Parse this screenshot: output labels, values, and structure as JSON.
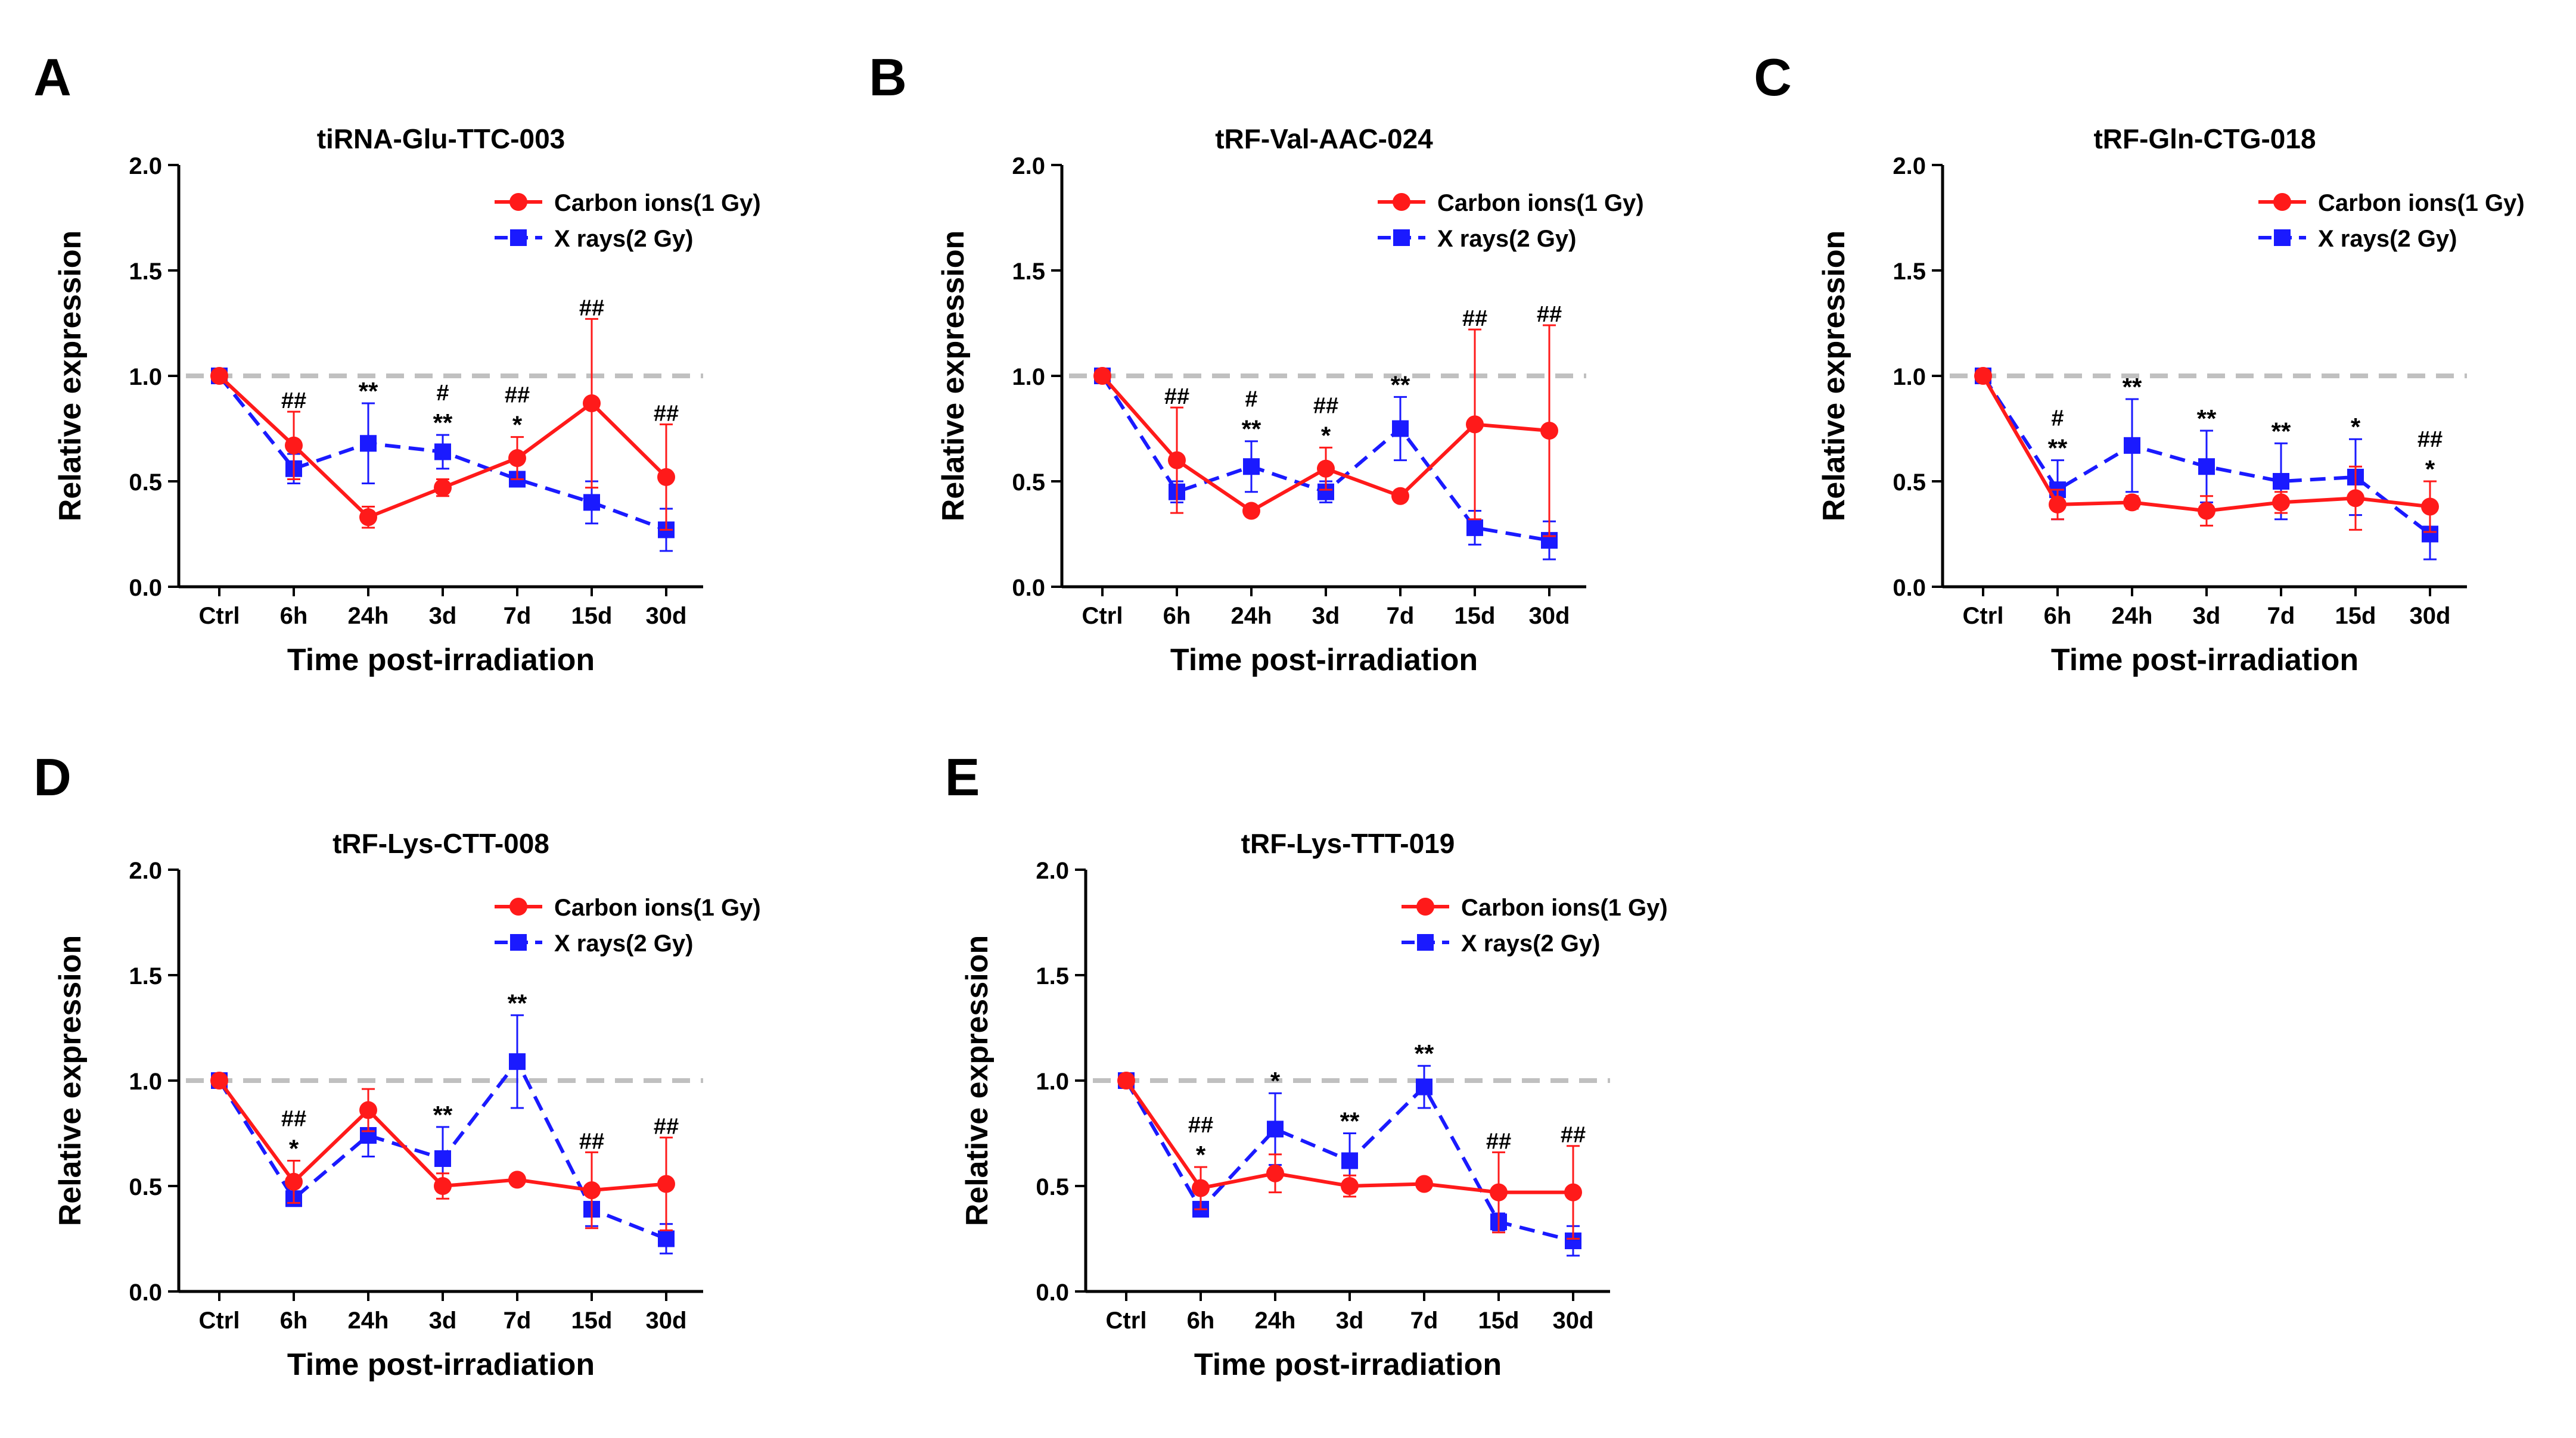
{
  "figure": {
    "categories": [
      "Ctrl",
      "6h",
      "24h",
      "3d",
      "7d",
      "15d",
      "30d"
    ],
    "xlabel": "Time post-irradiation",
    "ylabel": "Relative expression",
    "legend": [
      "Carbon ions(1 Gy)",
      "X rays(2 Gy)"
    ],
    "colors": {
      "carbon": "#ff1a1a",
      "xray": "#1a1aff",
      "reference": "#c0c0c0",
      "axis": "#000000"
    }
  },
  "chart_data": [
    {
      "panel": "A",
      "title": "tiRNA-Glu-TTC-003",
      "type": "line",
      "categories": [
        "Ctrl",
        "6h",
        "24h",
        "3d",
        "7d",
        "15d",
        "30d"
      ],
      "xlabel": "Time post-irradiation",
      "ylabel": "Relative expression",
      "ylim": [
        0,
        2.0
      ],
      "yticks": [
        "0.0",
        "0.5",
        "1.0",
        "1.5",
        "2.0"
      ],
      "reference_line": 1.0,
      "legend_position": "top-right",
      "series": [
        {
          "name": "Carbon ions(1 Gy)",
          "values": [
            1.0,
            0.67,
            0.33,
            0.47,
            0.61,
            0.87,
            0.52
          ],
          "errors": [
            0,
            0.16,
            0.05,
            0.04,
            0.1,
            0.4,
            0.25
          ]
        },
        {
          "name": "X rays(2 Gy)",
          "values": [
            1.0,
            0.56,
            0.68,
            0.64,
            0.51,
            0.4,
            0.27
          ],
          "errors": [
            0,
            0.07,
            0.19,
            0.08,
            0.02,
            0.1,
            0.1
          ]
        }
      ],
      "annotations": [
        {
          "category": "6h",
          "top": "##",
          "bottom": ""
        },
        {
          "category": "24h",
          "top": "",
          "bottom": "**"
        },
        {
          "category": "3d",
          "top": "#",
          "bottom": "**"
        },
        {
          "category": "7d",
          "top": "##",
          "bottom": "*"
        },
        {
          "category": "15d",
          "top": "##",
          "bottom": ""
        },
        {
          "category": "30d",
          "top": "##",
          "bottom": ""
        }
      ]
    },
    {
      "panel": "B",
      "title": "tRF-Val-AAC-024",
      "type": "line",
      "categories": [
        "Ctrl",
        "6h",
        "24h",
        "3d",
        "7d",
        "15d",
        "30d"
      ],
      "xlabel": "Time post-irradiation",
      "ylabel": "Relative expression",
      "ylim": [
        0,
        2.0
      ],
      "yticks": [
        "0.0",
        "0.5",
        "1.0",
        "1.5",
        "2.0"
      ],
      "reference_line": 1.0,
      "legend_position": "top-right",
      "series": [
        {
          "name": "Carbon ions(1 Gy)",
          "values": [
            1.0,
            0.6,
            0.36,
            0.56,
            0.43,
            0.77,
            0.74
          ],
          "errors": [
            0,
            0.25,
            0.02,
            0.1,
            0.02,
            0.45,
            0.5
          ]
        },
        {
          "name": "X rays(2 Gy)",
          "values": [
            1.0,
            0.45,
            0.57,
            0.45,
            0.75,
            0.28,
            0.22
          ],
          "errors": [
            0,
            0.05,
            0.12,
            0.05,
            0.15,
            0.08,
            0.09
          ]
        }
      ],
      "annotations": [
        {
          "category": "6h",
          "top": "##",
          "bottom": ""
        },
        {
          "category": "24h",
          "top": "#",
          "bottom": "**"
        },
        {
          "category": "3d",
          "top": "##",
          "bottom": "*"
        },
        {
          "category": "7d",
          "top": "",
          "bottom": "**"
        },
        {
          "category": "15d",
          "top": "##",
          "bottom": ""
        },
        {
          "category": "30d",
          "top": "##",
          "bottom": ""
        }
      ]
    },
    {
      "panel": "C",
      "title": "tRF-Gln-CTG-018",
      "type": "line",
      "categories": [
        "Ctrl",
        "6h",
        "24h",
        "3d",
        "7d",
        "15d",
        "30d"
      ],
      "xlabel": "Time post-irradiation",
      "ylabel": "Relative expression",
      "ylim": [
        0,
        2.0
      ],
      "yticks": [
        "0.0",
        "0.5",
        "1.0",
        "1.5",
        "2.0"
      ],
      "reference_line": 1.0,
      "legend_position": "top-right",
      "series": [
        {
          "name": "Carbon ions(1 Gy)",
          "values": [
            1.0,
            0.39,
            0.4,
            0.36,
            0.4,
            0.42,
            0.38
          ],
          "errors": [
            0,
            0.07,
            0.03,
            0.07,
            0.05,
            0.15,
            0.12
          ]
        },
        {
          "name": "X rays(2 Gy)",
          "values": [
            1.0,
            0.46,
            0.67,
            0.57,
            0.5,
            0.52,
            0.25
          ],
          "errors": [
            0,
            0.14,
            0.22,
            0.17,
            0.18,
            0.18,
            0.12
          ]
        }
      ],
      "annotations": [
        {
          "category": "6h",
          "top": "#",
          "bottom": "**"
        },
        {
          "category": "24h",
          "top": "",
          "bottom": "**"
        },
        {
          "category": "3d",
          "top": "",
          "bottom": "**"
        },
        {
          "category": "7d",
          "top": "",
          "bottom": "**"
        },
        {
          "category": "15d",
          "top": "",
          "bottom": "*"
        },
        {
          "category": "30d",
          "top": "##",
          "bottom": "*"
        }
      ]
    },
    {
      "panel": "D",
      "title": "tRF-Lys-CTT-008",
      "type": "line",
      "categories": [
        "Ctrl",
        "6h",
        "24h",
        "3d",
        "7d",
        "15d",
        "30d"
      ],
      "xlabel": "Time post-irradiation",
      "ylabel": "Relative expression",
      "ylim": [
        0,
        2.0
      ],
      "yticks": [
        "0.0",
        "0.5",
        "1.0",
        "1.5",
        "2.0"
      ],
      "reference_line": 1.0,
      "legend_position": "top-right",
      "series": [
        {
          "name": "Carbon ions(1 Gy)",
          "values": [
            1.0,
            0.52,
            0.86,
            0.5,
            0.53,
            0.48,
            0.51
          ],
          "errors": [
            0,
            0.1,
            0.1,
            0.06,
            0.02,
            0.18,
            0.22
          ]
        },
        {
          "name": "X rays(2 Gy)",
          "values": [
            1.0,
            0.44,
            0.74,
            0.63,
            1.09,
            0.39,
            0.25
          ],
          "errors": [
            0,
            0.03,
            0.1,
            0.15,
            0.22,
            0.08,
            0.07
          ]
        }
      ],
      "annotations": [
        {
          "category": "6h",
          "top": "##",
          "bottom": "*"
        },
        {
          "category": "3d",
          "top": "",
          "bottom": "**"
        },
        {
          "category": "7d",
          "top": "",
          "bottom": "**"
        },
        {
          "category": "15d",
          "top": "##",
          "bottom": ""
        },
        {
          "category": "30d",
          "top": "##",
          "bottom": ""
        }
      ]
    },
    {
      "panel": "E",
      "title": "tRF-Lys-TTT-019",
      "type": "line",
      "categories": [
        "Ctrl",
        "6h",
        "24h",
        "3d",
        "7d",
        "15d",
        "30d"
      ],
      "xlabel": "Time post-irradiation",
      "ylabel": "Relative expression",
      "ylim": [
        0,
        2.0
      ],
      "yticks": [
        "0.0",
        "0.5",
        "1.0",
        "1.5",
        "2.0"
      ],
      "reference_line": 1.0,
      "legend_position": "top-right",
      "series": [
        {
          "name": "Carbon ions(1 Gy)",
          "values": [
            1.0,
            0.49,
            0.56,
            0.5,
            0.51,
            0.47,
            0.47
          ],
          "errors": [
            0,
            0.1,
            0.09,
            0.05,
            0.02,
            0.19,
            0.22
          ]
        },
        {
          "name": "X rays(2 Gy)",
          "values": [
            1.0,
            0.39,
            0.77,
            0.62,
            0.97,
            0.33,
            0.24
          ],
          "errors": [
            0,
            0.03,
            0.17,
            0.13,
            0.1,
            0.04,
            0.07
          ]
        }
      ],
      "annotations": [
        {
          "category": "6h",
          "top": "##",
          "bottom": "*"
        },
        {
          "category": "24h",
          "top": "",
          "bottom": "*"
        },
        {
          "category": "3d",
          "top": "",
          "bottom": "**"
        },
        {
          "category": "7d",
          "top": "",
          "bottom": "**"
        },
        {
          "category": "15d",
          "top": "##",
          "bottom": ""
        },
        {
          "category": "30d",
          "top": "##",
          "bottom": ""
        }
      ]
    }
  ]
}
